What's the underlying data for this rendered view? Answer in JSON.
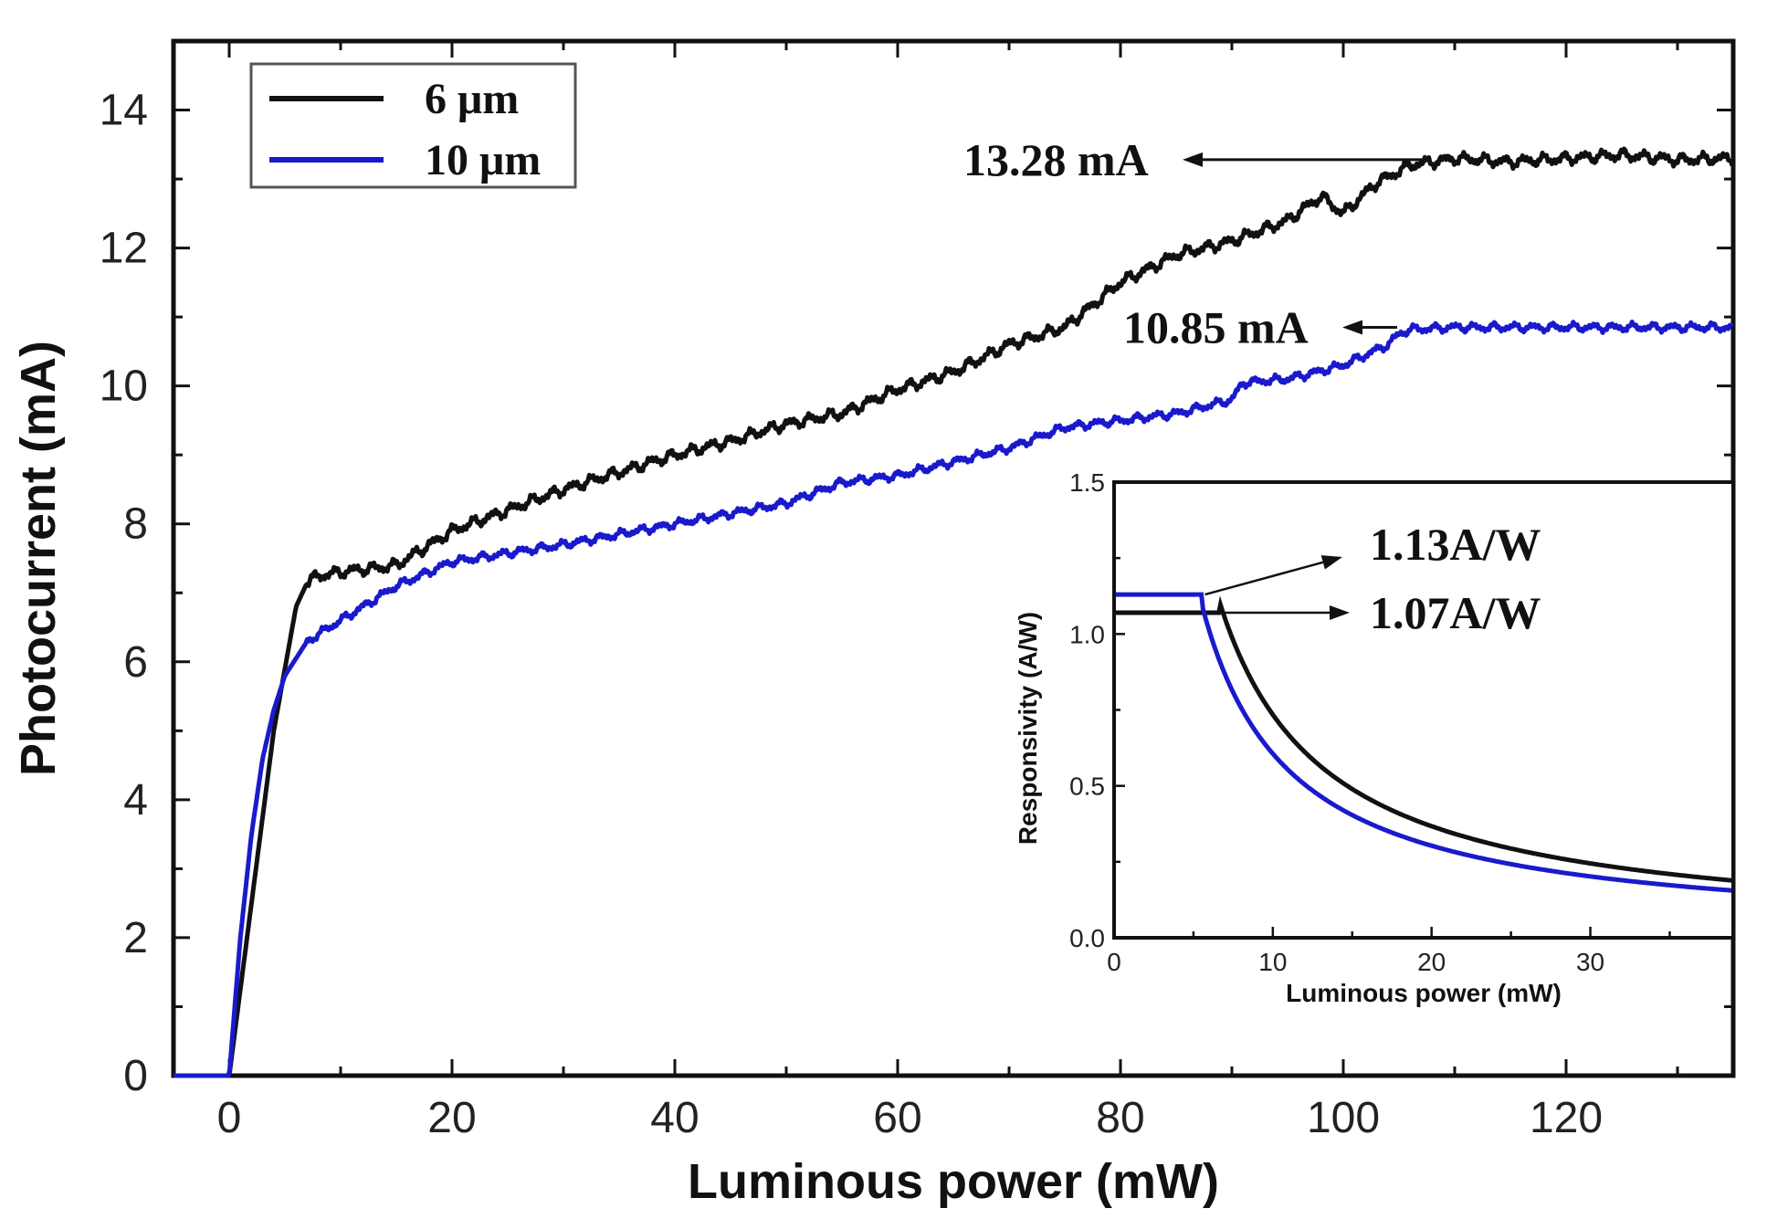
{
  "chart_data": {
    "type": "line",
    "title": "",
    "xlabel": "Luminous power (mW)",
    "ylabel": "Photocurrent (mA)",
    "xlim": [
      -5,
      135
    ],
    "ylim": [
      0,
      15
    ],
    "x_ticks": [
      0,
      20,
      40,
      60,
      80,
      100,
      120
    ],
    "y_ticks": [
      0,
      2,
      4,
      6,
      8,
      10,
      12,
      14
    ],
    "legend_position": "top-left",
    "colors": {
      "6um": "#111111",
      "10um": "#1a1acc",
      "frame": "#111111"
    },
    "series": [
      {
        "name": "6 μm",
        "x": [
          -5,
          0,
          2,
          4,
          6,
          7,
          8,
          10,
          15,
          20,
          30,
          40,
          45,
          50,
          55,
          60,
          65,
          70,
          75,
          80,
          85,
          90,
          95,
          98,
          100,
          103,
          106,
          110,
          115,
          120,
          125,
          130,
          135
        ],
        "y": [
          0,
          0,
          2.5,
          5.0,
          6.8,
          7.15,
          7.25,
          7.3,
          7.4,
          7.9,
          8.5,
          9.0,
          9.2,
          9.45,
          9.6,
          9.95,
          10.2,
          10.6,
          10.85,
          11.5,
          11.9,
          12.1,
          12.4,
          12.75,
          12.5,
          12.95,
          13.2,
          13.3,
          13.25,
          13.3,
          13.35,
          13.28,
          13.3
        ]
      },
      {
        "name": "10 μm",
        "x": [
          -5,
          0,
          1,
          2,
          3,
          4,
          5,
          6,
          7,
          8,
          10,
          15,
          20,
          30,
          40,
          50,
          55,
          60,
          65,
          70,
          75,
          80,
          85,
          90,
          91,
          95,
          100,
          104,
          105,
          106,
          110,
          120,
          130,
          135
        ],
        "y": [
          0,
          0,
          2.0,
          3.5,
          4.6,
          5.3,
          5.8,
          6.05,
          6.3,
          6.4,
          6.6,
          7.1,
          7.45,
          7.7,
          8.0,
          8.3,
          8.6,
          8.7,
          8.9,
          9.1,
          9.4,
          9.5,
          9.6,
          9.8,
          10.05,
          10.1,
          10.3,
          10.6,
          10.75,
          10.82,
          10.85,
          10.85,
          10.85,
          10.85
        ]
      }
    ],
    "annotations": [
      {
        "text": "13.28 mA",
        "value": 13.28,
        "series": "6 μm"
      },
      {
        "text": "10.85 mA",
        "value": 10.85,
        "series": "10 μm"
      }
    ],
    "inset": {
      "type": "line",
      "xlabel": "Luminous power (mW)",
      "ylabel": "Responsivity (A/W)",
      "xlim": [
        0,
        39
      ],
      "ylim": [
        0,
        1.5
      ],
      "x_ticks": [
        0,
        10,
        20,
        30
      ],
      "y_ticks": [
        0.0,
        0.5,
        1.0,
        1.5
      ],
      "y_tick_labels": [
        "0.0",
        "0.5",
        "1.0",
        "1.5"
      ],
      "series": [
        {
          "name": "6 μm",
          "plateau": 1.07,
          "knee": 6.6,
          "x_end": 39
        },
        {
          "name": "10 μm",
          "plateau": 1.13,
          "knee": 5.5,
          "x_end": 39
        }
      ],
      "annotations": [
        {
          "text": "1.13A/W",
          "value": 1.13
        },
        {
          "text": "1.07A/W",
          "value": 1.07
        }
      ]
    }
  }
}
